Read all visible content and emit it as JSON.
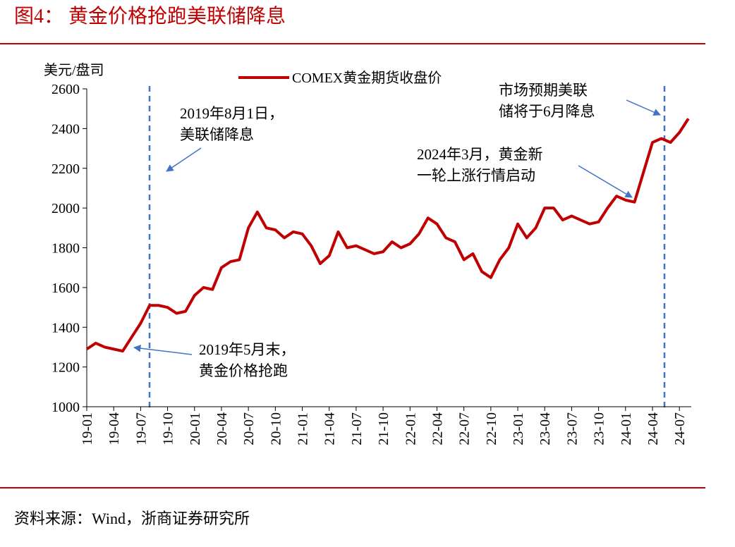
{
  "title": "图4：  黄金价格抢跑美联储降息",
  "source": "资料来源：Wind，浙商证券研究所",
  "chart_data": {
    "type": "line",
    "y_label": "美元/盘司",
    "categories": [
      "19-01",
      null,
      null,
      "19-04",
      null,
      null,
      "19-07",
      null,
      null,
      "19-10",
      null,
      null,
      "20-01",
      null,
      null,
      "20-04",
      null,
      null,
      "20-07",
      null,
      null,
      "20-10",
      null,
      null,
      "21-01",
      null,
      null,
      "21-04",
      null,
      null,
      "21-07",
      null,
      null,
      "21-10",
      null,
      null,
      "22-01",
      null,
      null,
      "22-04",
      null,
      null,
      "22-07",
      null,
      null,
      "22-10",
      null,
      null,
      "23-01",
      null,
      null,
      "23-04",
      null,
      null,
      "23-07",
      null,
      null,
      "23-10",
      null,
      null,
      "24-01",
      null,
      null,
      "24-04",
      null,
      null,
      "24-07",
      null
    ],
    "series": [
      {
        "name": "COMEX黄金期货收盘价",
        "color": "#c00000",
        "values": [
          1290,
          1320,
          1300,
          1290,
          1280,
          1350,
          1420,
          1510,
          1510,
          1500,
          1470,
          1480,
          1560,
          1600,
          1590,
          1700,
          1730,
          1740,
          1900,
          1980,
          1900,
          1890,
          1850,
          1880,
          1870,
          1810,
          1720,
          1760,
          1880,
          1800,
          1810,
          1790,
          1770,
          1780,
          1830,
          1800,
          1820,
          1870,
          1950,
          1920,
          1850,
          1830,
          1740,
          1770,
          1680,
          1650,
          1740,
          1800,
          1920,
          1850,
          1900,
          2000,
          2000,
          1940,
          1960,
          1940,
          1920,
          1930,
          2000,
          2060,
          2040,
          2030,
          2180,
          2330,
          2350,
          2330,
          2380,
          2450
        ]
      }
    ],
    "ylim": [
      1000,
      2600
    ],
    "yticks": [
      1000,
      1200,
      1400,
      1600,
      1800,
      2000,
      2200,
      2400,
      2600
    ],
    "annotations": [
      {
        "lines": [
          "2019年8月1日，",
          "美联储降息"
        ]
      },
      {
        "lines": [
          "2019年5月末，",
          "黄金价格抢跑"
        ]
      },
      {
        "lines": [
          "2024年3月，黄金新",
          "一轮上涨行情启动"
        ]
      },
      {
        "lines": [
          "市场预期美联",
          "储将于6月降息"
        ]
      }
    ]
  }
}
